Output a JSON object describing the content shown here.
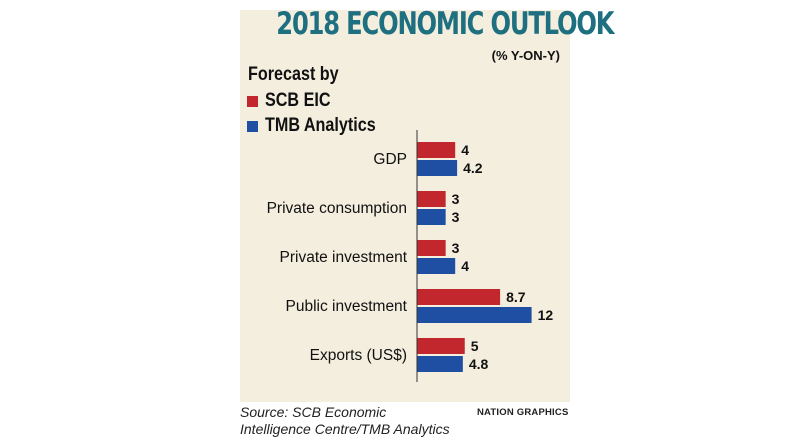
{
  "chart_data": {
    "type": "bar",
    "orientation": "horizontal",
    "title": "2018 ECONOMIC OUTLOOK",
    "subtitle": "(% Y-ON-Y)",
    "legend_title": "Forecast by",
    "categories": [
      "GDP",
      "Private consumption",
      "Private investment",
      "Public investment",
      "Exports (US$)"
    ],
    "series": [
      {
        "name": "SCB EIC",
        "color": "#c1272d",
        "values": [
          4,
          3,
          3,
          8.7,
          5
        ],
        "labels": [
          "4",
          "3",
          "3",
          "8.7",
          "5"
        ]
      },
      {
        "name": "TMB Analytics",
        "color": "#1f4fa3",
        "values": [
          4.2,
          3,
          4,
          12,
          4.8
        ],
        "labels": [
          "4.2",
          "3",
          "4",
          "12",
          "4.8"
        ]
      }
    ],
    "xlim": [
      0,
      12
    ],
    "grid": false
  },
  "source": {
    "line1": "Source: SCB Economic",
    "line2": "Intelligence Centre/TMB Analytics"
  },
  "credit": "NATION GRAPHICS"
}
